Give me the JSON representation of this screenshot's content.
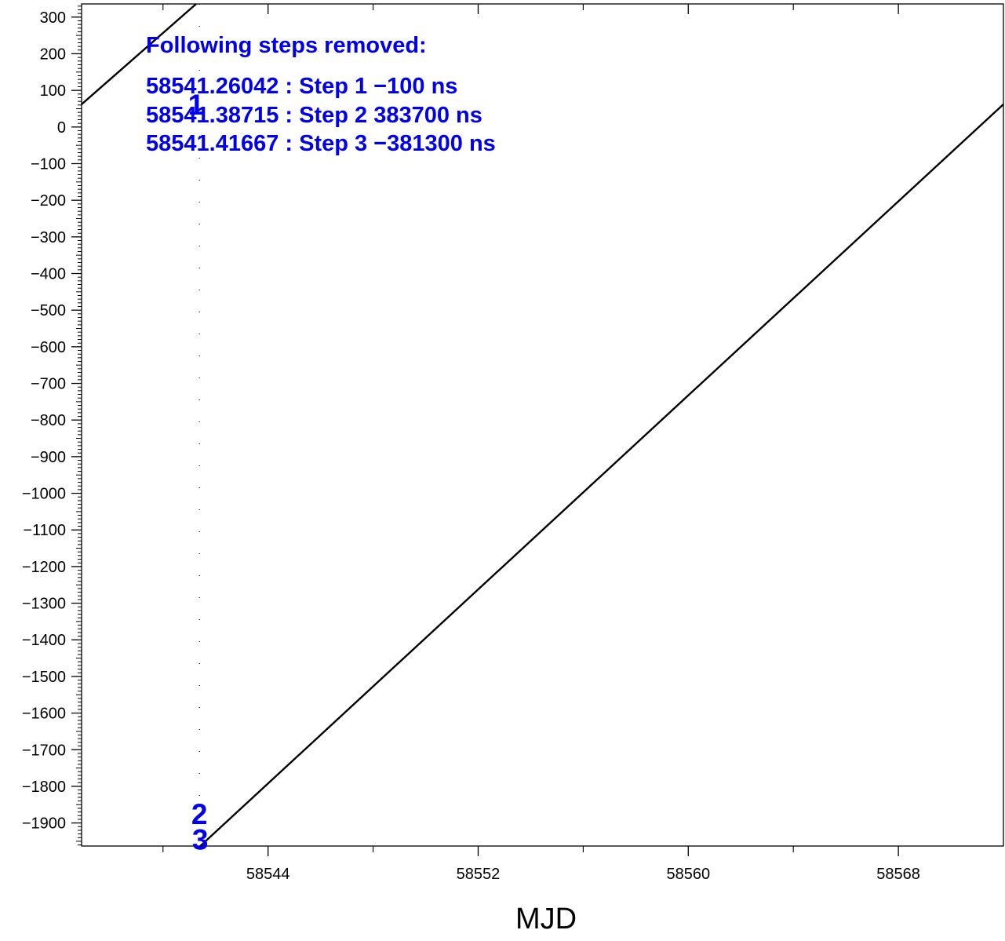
{
  "chart_data": {
    "type": "line",
    "title": "",
    "xlabel": "MJD",
    "ylabel": "",
    "xlim": [
      58536.9,
      58572.0
    ],
    "ylim": [
      -1963,
      336
    ],
    "grid": false,
    "x_ticks": [
      58544,
      58552,
      58560,
      58568
    ],
    "x_minor_ticks": [
      58540,
      58548,
      58556,
      58564
    ],
    "y_ticks": [
      300,
      200,
      100,
      0,
      -100,
      -200,
      -300,
      -400,
      -500,
      -600,
      -700,
      -800,
      -900,
      -1000,
      -1100,
      -1200,
      -1300,
      -1400,
      -1500,
      -1600,
      -1700,
      -1800,
      -1900
    ],
    "y_tick_labels": [
      "300",
      "200",
      "100",
      "0",
      "−100",
      "−200",
      "−300",
      "−400",
      "−500",
      "−600",
      "−700",
      "−800",
      "−900",
      "−1000",
      "−1100",
      "−1200",
      "−1300",
      "−1400",
      "−1500",
      "−1600",
      "−1700",
      "−1800",
      "−1900"
    ],
    "series": [
      {
        "x": [
          58536.9,
          58541.26
        ],
        "y": [
          62,
          336
        ],
        "color": "#000000"
      },
      {
        "x": [
          58541.42,
          58572.0
        ],
        "y": [
          -1963,
          62
        ],
        "color": "#000000"
      }
    ],
    "step_line": {
      "x": 58541.39,
      "style": "dotted"
    },
    "annotation_color": "#0000ee",
    "annotation": {
      "header": "Following steps removed:",
      "lines": [
        "58541.26042 : Step 1 −100 ns",
        "58541.38715 : Step 2 383700 ns",
        "58541.41667 : Step 3 −381300 ns"
      ]
    },
    "step_markers": [
      {
        "label": "1",
        "x": 58541.26042,
        "y": 62
      },
      {
        "label": "2",
        "x": 58541.38715,
        "y": -1875
      },
      {
        "label": "3",
        "x": 58541.41667,
        "y": -1945
      }
    ]
  }
}
